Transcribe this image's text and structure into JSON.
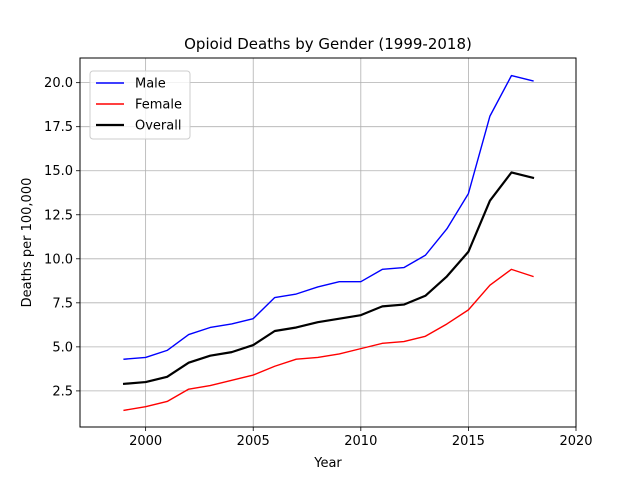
{
  "chart_data": {
    "type": "line",
    "title": "Opioid Deaths by Gender (1999-2018)",
    "xlabel": "Year",
    "ylabel": "Deaths per 100,000",
    "xlim": [
      1996.95,
      2020
    ],
    "ylim": [
      0.45,
      21.4
    ],
    "xticks": [
      "2000",
      "2005",
      "2010",
      "2015",
      "2020"
    ],
    "yticks": [
      "2.5",
      "5.0",
      "7.5",
      "10.0",
      "12.5",
      "15.0",
      "17.5",
      "20.0"
    ],
    "grid": true,
    "legend_position": "upper-left",
    "x": [
      1999,
      2000,
      2001,
      2002,
      2003,
      2004,
      2005,
      2006,
      2007,
      2008,
      2009,
      2010,
      2011,
      2012,
      2013,
      2014,
      2015,
      2016,
      2017,
      2018
    ],
    "series": [
      {
        "name": "Male",
        "color": "#0000ff",
        "width": "thin",
        "values": [
          4.3,
          4.4,
          4.8,
          5.7,
          6.1,
          6.3,
          6.6,
          7.8,
          8.0,
          8.4,
          8.7,
          8.7,
          9.4,
          9.5,
          10.2,
          11.7,
          13.7,
          18.1,
          20.4,
          20.1
        ]
      },
      {
        "name": "Female",
        "color": "#ff0000",
        "width": "thin",
        "values": [
          1.4,
          1.6,
          1.9,
          2.6,
          2.8,
          3.1,
          3.4,
          3.9,
          4.3,
          4.4,
          4.6,
          4.9,
          5.2,
          5.3,
          5.6,
          6.3,
          7.1,
          8.5,
          9.4,
          9.0
        ]
      },
      {
        "name": "Overall",
        "color": "#000000",
        "width": "thick",
        "values": [
          2.9,
          3.0,
          3.3,
          4.1,
          4.5,
          4.7,
          5.1,
          5.9,
          6.1,
          6.4,
          6.6,
          6.8,
          7.3,
          7.4,
          7.9,
          9.0,
          10.4,
          13.3,
          14.9,
          14.6
        ]
      }
    ]
  }
}
